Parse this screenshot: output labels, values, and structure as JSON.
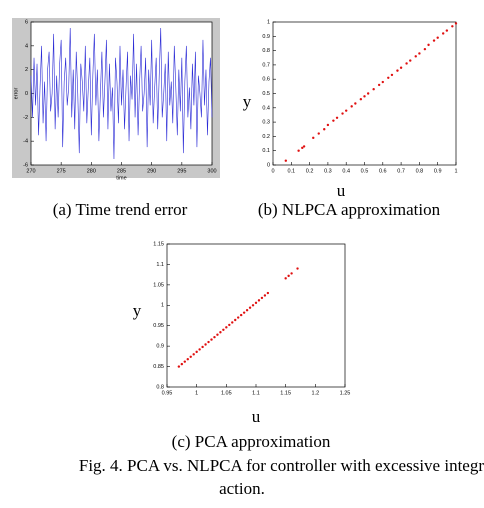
{
  "chart_data": [
    {
      "type": "line",
      "caption": "(a) Time trend error",
      "xlabel": "time",
      "ylabel": "error",
      "color": "#2b2bd6",
      "background": "#c8c8c8",
      "xlim": [
        270,
        300
      ],
      "xticks": [
        270,
        275,
        280,
        285,
        290,
        295,
        300
      ],
      "ylim": [
        -6,
        6
      ],
      "yticks": [
        -6,
        -4,
        -2,
        0,
        2,
        4,
        6
      ],
      "x": [
        270,
        270.25,
        270.5,
        270.75,
        271,
        271.25,
        271.5,
        271.75,
        272,
        272.25,
        272.5,
        272.75,
        273,
        273.25,
        273.5,
        273.75,
        274,
        274.25,
        274.5,
        274.75,
        275,
        275.25,
        275.5,
        275.75,
        276,
        276.25,
        276.5,
        276.75,
        277,
        277.25,
        277.5,
        277.75,
        278,
        278.25,
        278.5,
        278.75,
        279,
        279.25,
        279.5,
        279.75,
        280,
        280.25,
        280.5,
        280.75,
        281,
        281.25,
        281.5,
        281.75,
        282,
        282.25,
        282.5,
        282.75,
        283,
        283.25,
        283.5,
        283.75,
        284,
        284.25,
        284.5,
        284.75,
        285,
        285.25,
        285.5,
        285.75,
        286,
        286.25,
        286.5,
        286.75,
        287,
        287.25,
        287.5,
        287.75,
        288,
        288.25,
        288.5,
        288.75,
        289,
        289.25,
        289.5,
        289.75,
        290,
        290.25,
        290.5,
        290.75,
        291,
        291.25,
        291.5,
        291.75,
        292,
        292.25,
        292.5,
        292.75,
        293,
        293.25,
        293.5,
        293.75,
        294,
        294.25,
        294.5,
        294.75,
        295,
        295.25,
        295.5,
        295.75,
        296,
        296.25,
        296.5,
        296.75,
        297,
        297.25,
        297.5,
        297.75,
        298,
        298.25,
        298.5,
        298.75,
        299,
        299.25,
        299.5,
        299.75,
        300
      ],
      "values": [
        1.5,
        -2,
        3,
        -1,
        2.5,
        -3.5,
        0.5,
        4,
        -2.5,
        1,
        -4,
        2,
        3.5,
        -1.5,
        0,
        5,
        -3,
        1.5,
        -2,
        2.5,
        4.5,
        -4.5,
        1,
        3,
        -1,
        0.5,
        5.5,
        -2,
        2,
        -3,
        3.5,
        0,
        -5,
        2.5,
        1,
        -1.5,
        4,
        -2.5,
        0.5,
        3,
        -3.5,
        1.5,
        5,
        -1,
        2,
        -4,
        0,
        3.5,
        -2,
        1,
        4.5,
        -3,
        2.5,
        -1.5,
        0.5,
        -5.5,
        3,
        1,
        -2.5,
        4,
        -1,
        2,
        -3,
        0.5,
        3.5,
        -4,
        1.5,
        -0.5,
        5,
        -2,
        2.5,
        -3.5,
        1,
        4,
        -1.5,
        0,
        3,
        -4.5,
        2,
        -1,
        4.5,
        -2.5,
        0.5,
        3,
        -3,
        1.5,
        5.5,
        -2,
        0,
        2.5,
        -4,
        3.5,
        -1,
        1,
        -2.5,
        4,
        0.5,
        -3.5,
        2,
        -1.5,
        3,
        -5,
        1,
        4,
        -2,
        0.5,
        -3,
        2.5,
        -1,
        3.5,
        -4.5,
        1.5,
        0,
        -2,
        4.5,
        -1,
        2,
        -3.5,
        1,
        3,
        -2
      ]
    },
    {
      "type": "scatter",
      "caption": "(b) NLPCA approximation",
      "xlabel": "u",
      "ylabel": "y",
      "color": "#e01010",
      "xlim": [
        0,
        1
      ],
      "xticks": [
        0,
        0.1,
        0.2,
        0.3,
        0.4,
        0.5,
        0.6,
        0.7,
        0.8,
        0.9,
        1
      ],
      "ylim": [
        0,
        1
      ],
      "yticks": [
        0,
        0.1,
        0.2,
        0.3,
        0.4,
        0.5,
        0.6,
        0.7,
        0.8,
        0.9,
        1
      ],
      "x": [
        0.07,
        0.14,
        0.16,
        0.17,
        0.22,
        0.25,
        0.28,
        0.3,
        0.33,
        0.35,
        0.38,
        0.4,
        0.43,
        0.45,
        0.48,
        0.5,
        0.52,
        0.55,
        0.58,
        0.6,
        0.63,
        0.65,
        0.68,
        0.7,
        0.73,
        0.75,
        0.78,
        0.8,
        0.83,
        0.85,
        0.88,
        0.9,
        0.93,
        0.95,
        0.98,
        1.0
      ],
      "values": [
        0.03,
        0.1,
        0.12,
        0.13,
        0.19,
        0.22,
        0.25,
        0.28,
        0.31,
        0.33,
        0.36,
        0.38,
        0.41,
        0.43,
        0.46,
        0.48,
        0.5,
        0.53,
        0.56,
        0.58,
        0.61,
        0.63,
        0.66,
        0.68,
        0.71,
        0.73,
        0.76,
        0.78,
        0.81,
        0.84,
        0.87,
        0.89,
        0.92,
        0.94,
        0.97,
        0.99
      ]
    },
    {
      "type": "scatter",
      "caption": "(c) PCA approximation",
      "xlabel": "u",
      "ylabel": "y",
      "color": "#e01010",
      "xlim": [
        0.95,
        1.25
      ],
      "xticks": [
        0.95,
        1,
        1.05,
        1.1,
        1.15,
        1.2,
        1.25
      ],
      "ylim": [
        0.8,
        1.15
      ],
      "yticks": [
        0.8,
        0.85,
        0.9,
        0.95,
        1,
        1.05,
        1.1,
        1.15
      ],
      "x": [
        0.97,
        0.975,
        0.98,
        0.985,
        0.99,
        0.995,
        1.0,
        1.005,
        1.01,
        1.015,
        1.02,
        1.025,
        1.03,
        1.035,
        1.04,
        1.045,
        1.05,
        1.055,
        1.06,
        1.065,
        1.07,
        1.075,
        1.08,
        1.085,
        1.09,
        1.095,
        1.1,
        1.105,
        1.11,
        1.115,
        1.12,
        1.15,
        1.155,
        1.16,
        1.17
      ],
      "values": [
        0.85,
        0.856,
        0.862,
        0.868,
        0.874,
        0.88,
        0.886,
        0.892,
        0.898,
        0.904,
        0.91,
        0.916,
        0.922,
        0.928,
        0.934,
        0.94,
        0.946,
        0.952,
        0.958,
        0.964,
        0.97,
        0.976,
        0.982,
        0.988,
        0.994,
        1.0,
        1.006,
        1.012,
        1.018,
        1.024,
        1.03,
        1.066,
        1.072,
        1.078,
        1.09
      ]
    }
  ],
  "figure_caption": [
    "Fig. 4. PCA vs. NLPCA for controller with excessive integr",
    "action."
  ]
}
